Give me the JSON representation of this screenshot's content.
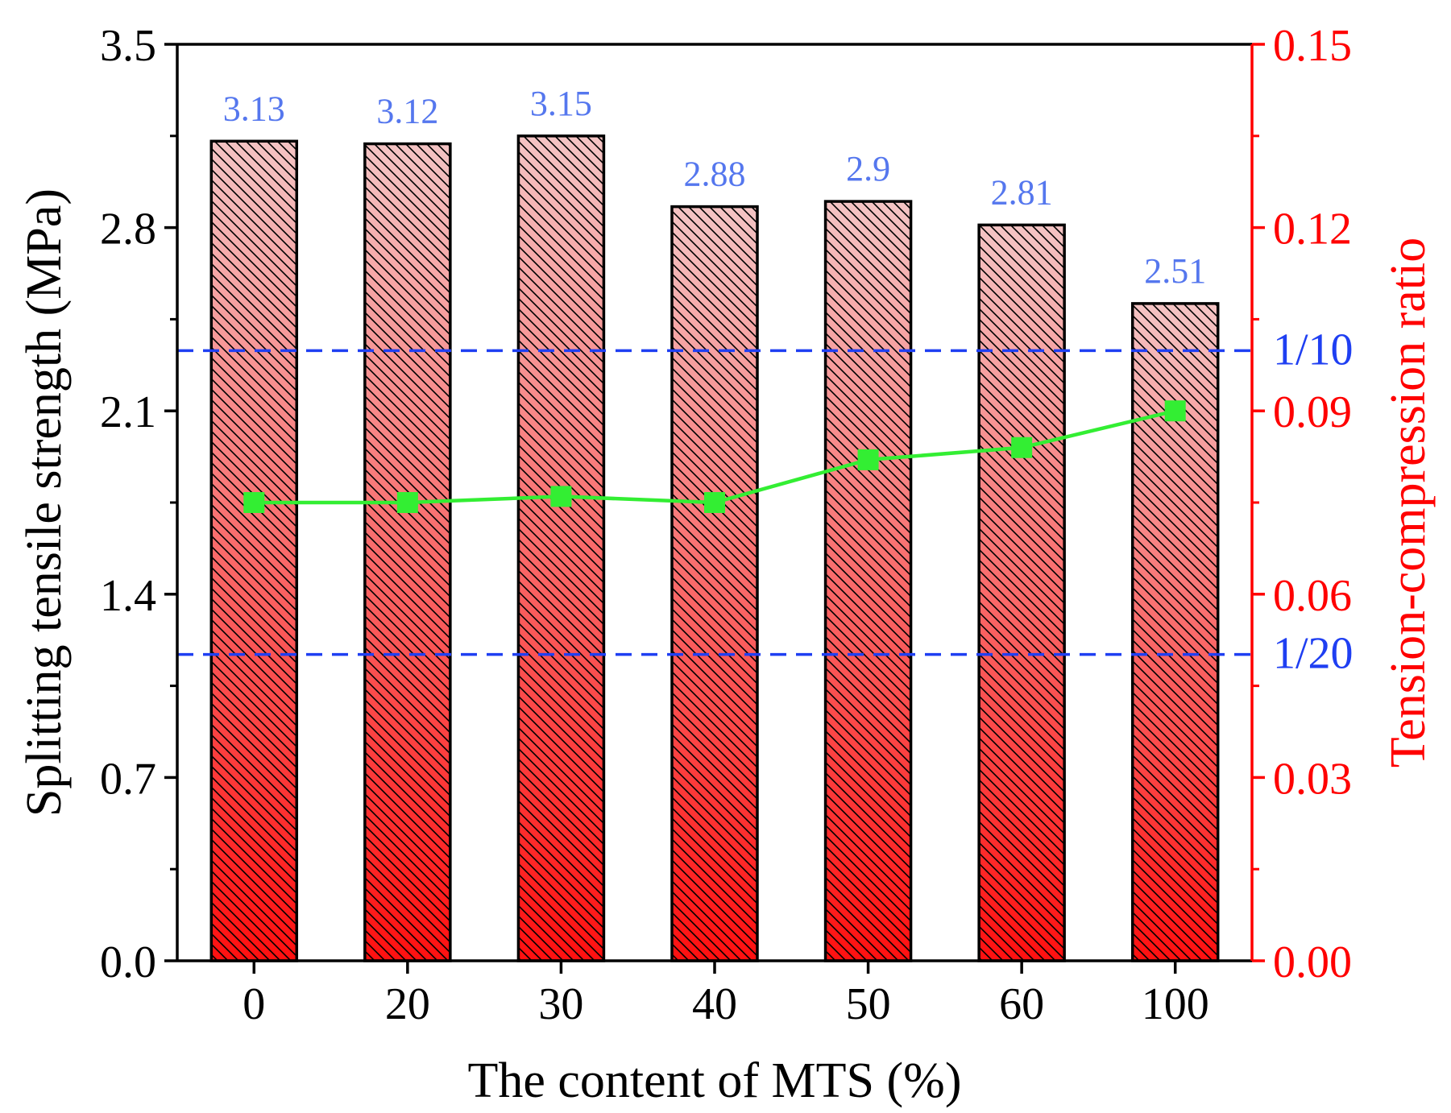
{
  "colors": {
    "bar_top": "#f4c4c4",
    "bar_bottom": "#ff1010",
    "bar_hatch": "#000000",
    "line": "#33ee33",
    "marker": "#33ee33",
    "value_label": "#5577ee",
    "ref_line": "#1f3ff2",
    "right_axis": "#ff0000",
    "left_axis": "#000000"
  },
  "chart_data": {
    "type": "bar",
    "xlabel": "The content of MTS (%)",
    "ylabel": "Splitting tensile strength (MPa)",
    "y2label": "Tension-compression ratio",
    "categories": [
      "0",
      "20",
      "30",
      "40",
      "50",
      "60",
      "100"
    ],
    "ylim": [
      0,
      3.5
    ],
    "y_ticks": [
      "0.0",
      "0.7",
      "1.4",
      "2.1",
      "2.8",
      "3.5"
    ],
    "y2lim": [
      0,
      0.15
    ],
    "y2_ticks": [
      "0.00",
      "0.03",
      "0.06",
      "0.09",
      "0.12",
      "0.15"
    ],
    "series": [
      {
        "type": "bar",
        "axis": "left",
        "values": [
          3.13,
          3.12,
          3.15,
          2.88,
          2.9,
          2.81,
          2.51
        ],
        "labels": [
          "3.13",
          "3.12",
          "3.15",
          "2.88",
          "2.9",
          "2.81",
          "2.51"
        ]
      },
      {
        "type": "line",
        "axis": "right",
        "marker": "square",
        "values": [
          0.075,
          0.075,
          0.076,
          0.075,
          0.082,
          0.084,
          0.09
        ]
      }
    ],
    "reference_lines": [
      {
        "label": "1/10",
        "axis": "left",
        "y": 2.33
      },
      {
        "label": "1/20",
        "axis": "left",
        "y": 1.17
      }
    ],
    "grid": false
  }
}
